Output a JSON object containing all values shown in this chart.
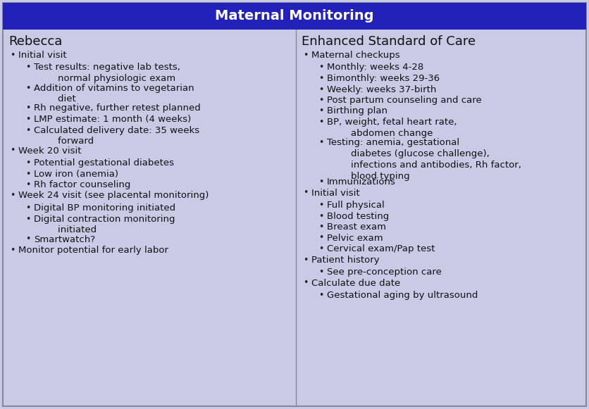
{
  "title": "Maternal Monitoring",
  "title_bg": "#2222bb",
  "title_color": "#ffffff",
  "body_bg": "#c8cae6",
  "border_color": "#888899",
  "left_header": "Rebecca",
  "right_header": "Enhanced Standard of Care",
  "left_content": [
    {
      "level": 1,
      "text": "Initial visit"
    },
    {
      "level": 2,
      "text": "Test results: negative lab tests,\n        normal physiologic exam"
    },
    {
      "level": 2,
      "text": "Addition of vitamins to vegetarian\n        diet"
    },
    {
      "level": 2,
      "text": "Rh negative, further retest planned"
    },
    {
      "level": 2,
      "text": "LMP estimate: 1 month (4 weeks)"
    },
    {
      "level": 2,
      "text": "Calculated delivery date: 35 weeks\n        forward"
    },
    {
      "level": 1,
      "text": "Week 20 visit"
    },
    {
      "level": 2,
      "text": "Potential gestational diabetes"
    },
    {
      "level": 2,
      "text": "Low iron (anemia)"
    },
    {
      "level": 2,
      "text": "Rh factor counseling"
    },
    {
      "level": 1,
      "text": "Week 24 visit (see placental monitoring)"
    },
    {
      "level": 2,
      "text": "Digital BP monitoring initiated"
    },
    {
      "level": 2,
      "text": "Digital contraction monitoring\n        initiated"
    },
    {
      "level": 2,
      "text": "Smartwatch?"
    },
    {
      "level": 1,
      "text": "Monitor potential for early labor"
    }
  ],
  "right_content": [
    {
      "level": 1,
      "text": "Maternal checkups"
    },
    {
      "level": 2,
      "text": "Monthly: weeks 4-28"
    },
    {
      "level": 2,
      "text": "Bimonthly: weeks 29-36"
    },
    {
      "level": 2,
      "text": "Weekly: weeks 37-birth"
    },
    {
      "level": 2,
      "text": "Post partum counseling and care"
    },
    {
      "level": 2,
      "text": "Birthing plan"
    },
    {
      "level": 2,
      "text": "BP, weight, fetal heart rate,\n        abdomen change"
    },
    {
      "level": 2,
      "text": "Testing: anemia, gestational\n        diabetes (glucose challenge),\n        infections and antibodies, Rh factor,\n        blood typing"
    },
    {
      "level": 2,
      "text": "Immunizations"
    },
    {
      "level": 1,
      "text": "Initial visit"
    },
    {
      "level": 2,
      "text": "Full physical"
    },
    {
      "level": 2,
      "text": "Blood testing"
    },
    {
      "level": 2,
      "text": "Breast exam"
    },
    {
      "level": 2,
      "text": "Pelvic exam"
    },
    {
      "level": 2,
      "text": "Cervical exam/Pap test"
    },
    {
      "level": 1,
      "text": "Patient history"
    },
    {
      "level": 2,
      "text": "See pre-conception care"
    },
    {
      "level": 1,
      "text": "Calculate due date"
    },
    {
      "level": 2,
      "text": "Gestational aging by ultrasound"
    }
  ],
  "figsize": [
    8.36,
    5.81
  ],
  "dpi": 100,
  "font_size_title": 14,
  "font_size_header": 13,
  "font_size_body": 9.5
}
